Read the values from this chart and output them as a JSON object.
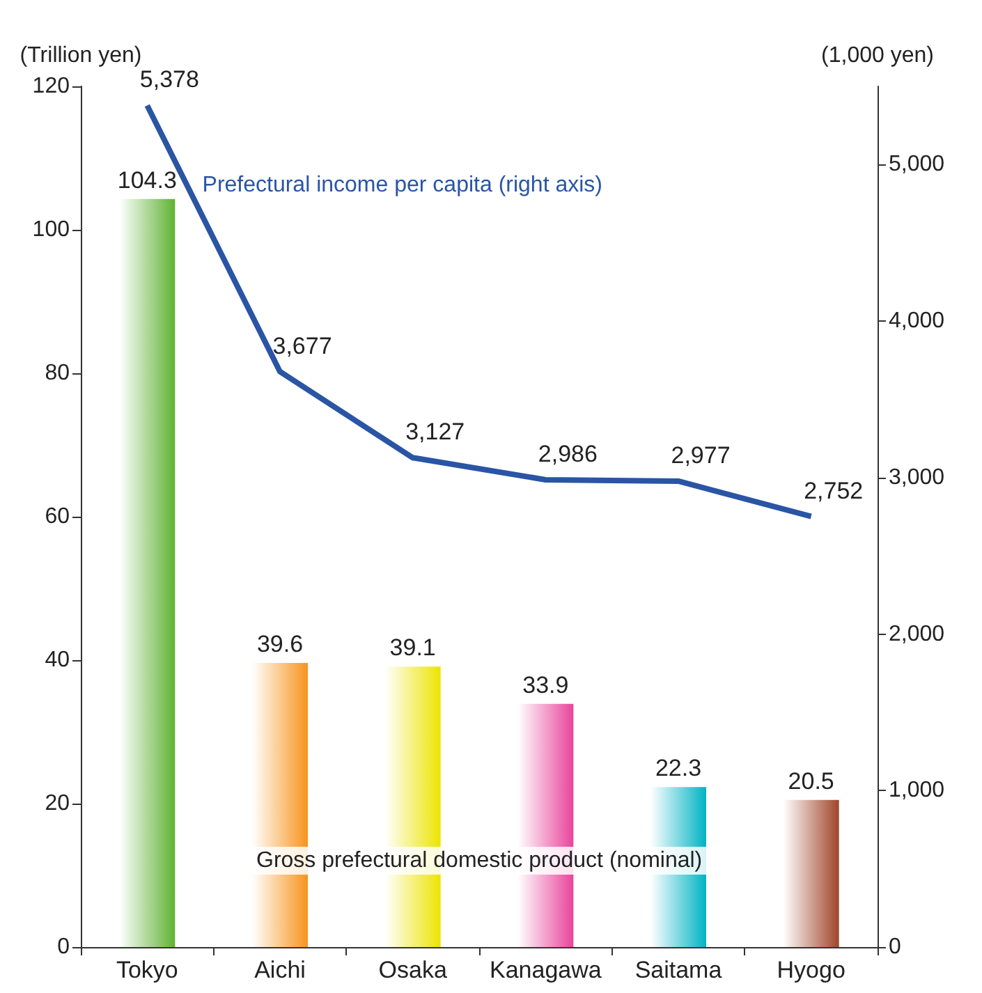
{
  "chart_data": {
    "type": "bar",
    "ylabel": "(Trillion yen)",
    "y2label": "(1,000 yen)",
    "categories": [
      "Tokyo",
      "Aichi",
      "Osaka",
      "Kanagawa",
      "Saitama",
      "Hyogo"
    ],
    "series": [
      {
        "name": "Gross prefectural domestic product (nominal)",
        "colors": [
          "#5fb233",
          "#f7941d",
          "#ece400",
          "#e8449a",
          "#00b3c3",
          "#a0452a"
        ],
        "values": [
          104.3,
          39.6,
          39.1,
          33.9,
          22.3,
          20.5
        ]
      },
      {
        "name": "Prefectural income per capita (right axis)",
        "type": "line",
        "axis": "y2",
        "color": "#2a55a5",
        "values": [
          5378,
          3677,
          3127,
          2986,
          2977,
          2752
        ],
        "value_labels": [
          "5,378",
          "3,677",
          "3,127",
          "2,986",
          "2,977",
          "2,752"
        ]
      }
    ],
    "ylim": [
      0,
      120
    ],
    "yticks": [
      0,
      20,
      40,
      60,
      80,
      100,
      120
    ],
    "y2lim": [
      0,
      5500
    ],
    "y2ticks": [
      0,
      {
        "value": 1000,
        "label": "1,000"
      },
      {
        "value": 2000,
        "label": "2,000"
      },
      {
        "value": 3000,
        "label": "3,000"
      },
      {
        "value": 4000,
        "label": "4,000"
      },
      {
        "value": 5000,
        "label": "5,000"
      }
    ],
    "data_labels": true,
    "grid": false,
    "legend": false,
    "marker": "none"
  }
}
